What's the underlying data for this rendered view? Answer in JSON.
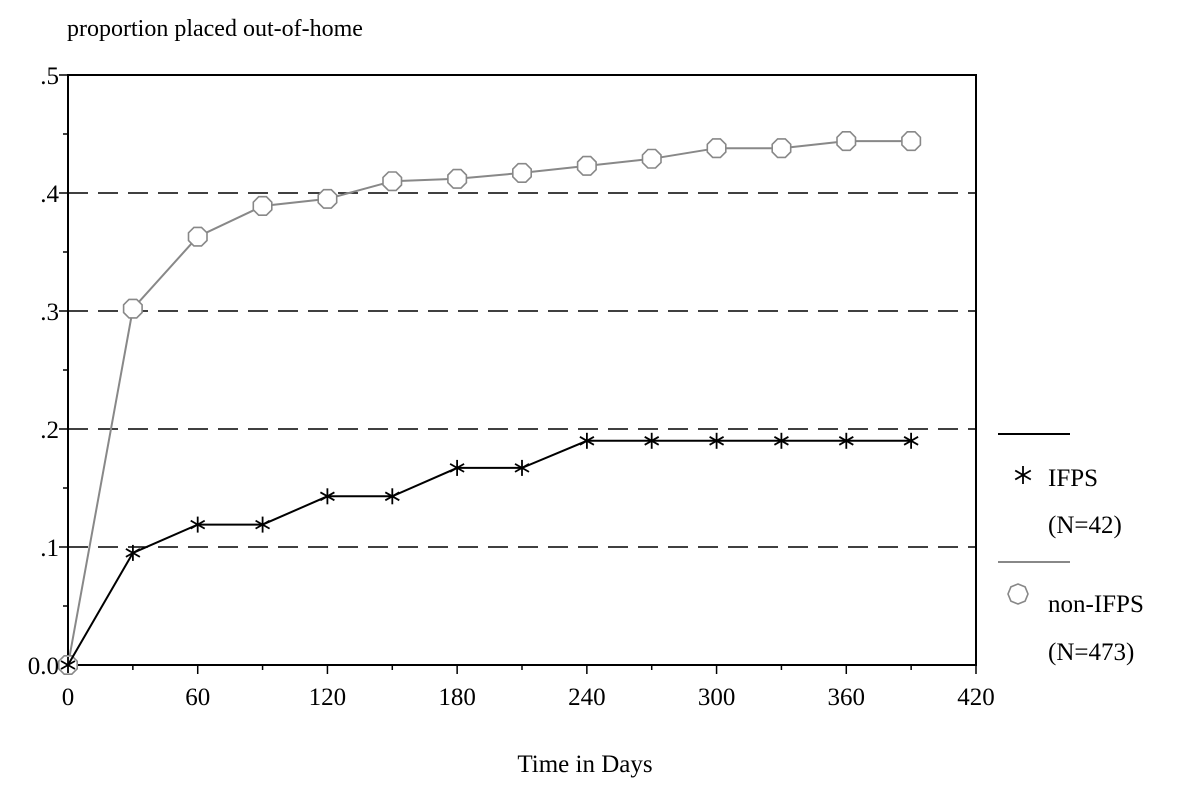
{
  "chart_data": {
    "type": "line",
    "title": "proportion placed out-of-home",
    "xlabel": "Time in Days",
    "ylabel": "",
    "xlim": [
      0,
      420
    ],
    "ylim": [
      0,
      0.5
    ],
    "x_ticks": [
      0,
      60,
      120,
      180,
      240,
      300,
      360,
      420
    ],
    "x_tick_labels": [
      "0",
      "60",
      "120",
      "180",
      "240",
      "300",
      "360",
      "420"
    ],
    "y_ticks": [
      0,
      0.1,
      0.2,
      0.3,
      0.4,
      0.5
    ],
    "y_tick_labels": [
      "0.0",
      ".1",
      ".2",
      ".3",
      ".4",
      ".5"
    ],
    "grid": "horizontal dashed lines at .1, .2, .3, .4",
    "legend_position": "right",
    "series": [
      {
        "name": "IFPS",
        "n_label": "(N=42)",
        "color": "#000000",
        "marker": "asterisk",
        "x": [
          0,
          30,
          60,
          90,
          120,
          150,
          180,
          210,
          240,
          270,
          300,
          330,
          360,
          390
        ],
        "y": [
          0.0,
          0.095,
          0.119,
          0.119,
          0.143,
          0.143,
          0.167,
          0.167,
          0.19,
          0.19,
          0.19,
          0.19,
          0.19,
          0.19
        ]
      },
      {
        "name": "non-IFPS",
        "n_label": "(N=473)",
        "color": "#888888",
        "marker": "octagon",
        "x": [
          0,
          30,
          60,
          90,
          120,
          150,
          180,
          210,
          240,
          270,
          300,
          330,
          360,
          390
        ],
        "y": [
          0.0,
          0.302,
          0.363,
          0.389,
          0.395,
          0.41,
          0.412,
          0.417,
          0.423,
          0.429,
          0.438,
          0.438,
          0.444,
          0.444
        ]
      }
    ]
  }
}
